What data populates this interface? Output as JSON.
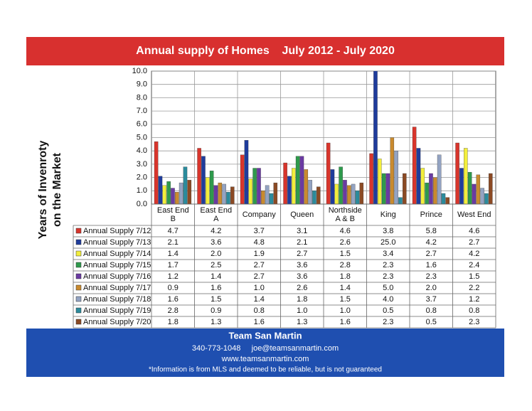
{
  "chart_data": {
    "type": "bar",
    "title": "Annual supply of Homes    July 2012 - July 2020",
    "y_label": [
      "Years of Invenroty",
      "on the Market"
    ],
    "categories": [
      "East End B",
      "East End A",
      "Company",
      "Queen",
      "Northside A & B",
      "King",
      "Prince",
      "West End"
    ],
    "ylim": [
      0,
      10
    ],
    "yticks": [
      {
        "value": 0,
        "label": "0.0"
      },
      {
        "value": 1,
        "label": "1.0"
      },
      {
        "value": 2,
        "label": "2.0"
      },
      {
        "value": 3,
        "label": "3.0"
      },
      {
        "value": 4,
        "label": "4.0"
      },
      {
        "value": 5,
        "label": "5.0"
      },
      {
        "value": 6,
        "label": "6.0"
      },
      {
        "value": 7,
        "label": "7.0"
      },
      {
        "value": 8,
        "label": "8.0"
      },
      {
        "value": 9,
        "label": "9.0"
      },
      {
        "value": 10,
        "label": "10.0"
      }
    ],
    "grid": true,
    "series": [
      {
        "name": "Annual Supply 7/12",
        "color": "#d8352c",
        "values": [
          4.7,
          4.2,
          3.7,
          3.1,
          4.6,
          3.8,
          5.8,
          4.6
        ],
        "value_labels": [
          "4.7",
          "4.2",
          "3.7",
          "3.1",
          "4.6",
          "3.8",
          "5.8",
          "4.6"
        ]
      },
      {
        "name": "Annual Supply 7/13",
        "color": "#1f3c9c",
        "values": [
          2.1,
          3.6,
          4.8,
          2.1,
          2.6,
          25.0,
          4.2,
          2.7
        ],
        "value_labels": [
          "2.1",
          "3.6",
          "4.8",
          "2.1",
          "2.6",
          "25.0",
          "4.2",
          "2.7"
        ]
      },
      {
        "name": "Annual Supply 7/14",
        "color": "#f2ee3c",
        "values": [
          1.4,
          2.0,
          1.9,
          2.7,
          1.5,
          3.4,
          2.7,
          4.2
        ],
        "value_labels": [
          "1.4",
          "2.0",
          "1.9",
          "2.7",
          "1.5",
          "3.4",
          "2.7",
          "4.2"
        ]
      },
      {
        "name": "Annual Supply 7/15",
        "color": "#2e9a4c",
        "values": [
          1.7,
          2.5,
          2.7,
          3.6,
          2.8,
          2.3,
          1.6,
          2.4
        ],
        "value_labels": [
          "1.7",
          "2.5",
          "2.7",
          "3.6",
          "2.8",
          "2.3",
          "1.6",
          "2.4"
        ]
      },
      {
        "name": "Annual Supply 7/16",
        "color": "#6a3aa2",
        "values": [
          1.2,
          1.4,
          2.7,
          3.6,
          1.8,
          2.3,
          2.3,
          1.5
        ],
        "value_labels": [
          "1.2",
          "1.4",
          "2.7",
          "3.6",
          "1.8",
          "2.3",
          "2.3",
          "1.5"
        ]
      },
      {
        "name": "Annual Supply 7/17",
        "color": "#c98a2e",
        "values": [
          0.9,
          1.6,
          1.0,
          2.6,
          1.4,
          5.0,
          2.0,
          2.2
        ],
        "value_labels": [
          "0.9",
          "1.6",
          "1.0",
          "2.6",
          "1.4",
          "5.0",
          "2.0",
          "2.2"
        ]
      },
      {
        "name": "Annual Supply 7/18",
        "color": "#93a3c2",
        "values": [
          1.6,
          1.5,
          1.4,
          1.8,
          1.5,
          4.0,
          3.7,
          1.2
        ],
        "value_labels": [
          "1.6",
          "1.5",
          "1.4",
          "1.8",
          "1.5",
          "4.0",
          "3.7",
          "1.2"
        ]
      },
      {
        "name": "Annual Supply 7/19",
        "color": "#2b8b9c",
        "values": [
          2.8,
          0.9,
          0.8,
          1.0,
          1.0,
          0.5,
          0.8,
          0.8
        ],
        "value_labels": [
          "2.8",
          "0.9",
          "0.8",
          "1.0",
          "1.0",
          "0.5",
          "0.8",
          "0.8"
        ]
      },
      {
        "name": "Annual Supply 7/20",
        "color": "#8b4a24",
        "values": [
          1.8,
          1.3,
          1.6,
          1.3,
          1.6,
          2.3,
          0.5,
          2.3
        ],
        "value_labels": [
          "1.8",
          "1.3",
          "1.6",
          "1.3",
          "1.6",
          "2.3",
          "0.5",
          "2.3"
        ]
      }
    ]
  },
  "footer": {
    "name": "Team San Martin",
    "contact": "340-773-1048     joe@teamsanmartin.com",
    "website": "www.teamsanmartin.com",
    "disclaimer": "*Information is from MLS and deemed to be reliable, but is not guaranteed"
  }
}
